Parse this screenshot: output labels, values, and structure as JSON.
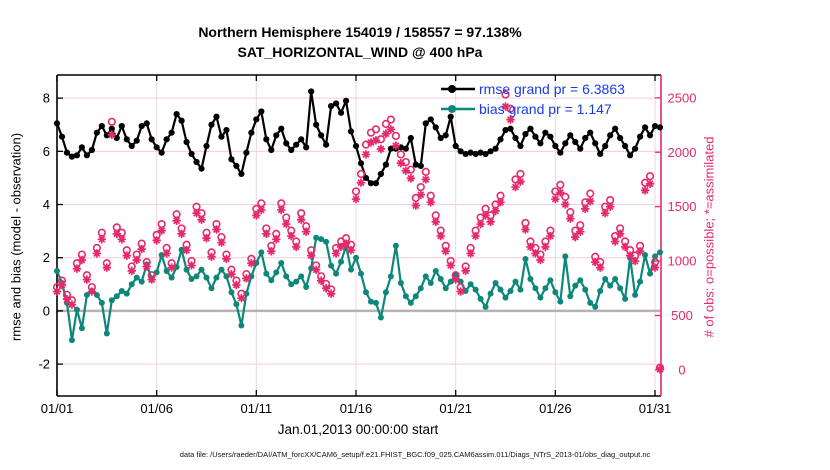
{
  "title": {
    "line1": "Northern Hemisphere 154019 / 158557 = 97.138%",
    "line2": "SAT_HORIZONTAL_WIND @ 400 hPa"
  },
  "legend": {
    "items": [
      {
        "label": "rmse grand pr = 6.3863",
        "color": "#000000"
      },
      {
        "label": "bias grand pr = 1.147",
        "color": "#0e877b"
      }
    ]
  },
  "axes": {
    "left_label": "rmse and bias (model - observation)",
    "right_label": "# of obs: o=possible; *=assimilated",
    "x_label": "Jan.01,2013 00:00:00 start",
    "x_tick_labels": [
      "01/01",
      "01/06",
      "01/11",
      "01/16",
      "01/21",
      "01/26",
      "01/31"
    ],
    "x_tick_days": [
      0,
      5,
      10,
      15,
      20,
      25,
      30
    ],
    "left_ticks": [
      -2,
      0,
      2,
      4,
      6,
      8
    ],
    "right_ticks": [
      0,
      500,
      1000,
      1500,
      2000,
      2500
    ]
  },
  "footer": "data file: /Users/raeder/DAI/ATM_forcXX/CAM6_setup/f.e21.FHIST_BGC.f09_025.CAM6assim.011/Diags_NTrS_2013-01/obs_diag_output.nc",
  "colors": {
    "rmse": "#000000",
    "bias": "#0e877b",
    "obs_pink": "#e6296b",
    "legend_text": "#1b3be8",
    "zero_line": "#b9b2b4",
    "grid_pink": "#f6ccd8",
    "grid_vert": "#eed6dc",
    "axis_black": "#000000"
  },
  "chart_data": {
    "type": "line",
    "x_start_day": 0,
    "x_step_days": 0.25,
    "xlim": [
      0,
      30.3
    ],
    "ylim_left": [
      -3.2,
      8.87
    ],
    "ylim_right": [
      -240,
      2710
    ],
    "grid": true,
    "legend_position": "top-right-inside",
    "series": [
      {
        "name": "rmse",
        "axis": "left",
        "marker": "filled-circle",
        "values": [
          7.05,
          6.55,
          5.95,
          5.8,
          5.85,
          6.15,
          5.85,
          6.05,
          6.7,
          6.95,
          6.6,
          6.85,
          6.5,
          6.95,
          6.45,
          6.2,
          6.4,
          6.95,
          7.05,
          6.45,
          6.15,
          5.95,
          6.45,
          6.7,
          7.4,
          7.15,
          6.35,
          5.9,
          5.6,
          5.35,
          6.2,
          7.0,
          7.3,
          6.55,
          6.8,
          5.7,
          5.45,
          5.15,
          5.95,
          6.7,
          7.2,
          7.5,
          6.45,
          6.05,
          6.6,
          6.85,
          6.3,
          6.05,
          6.25,
          6.45,
          6.15,
          8.25,
          7.0,
          6.6,
          6.25,
          7.7,
          7.8,
          7.45,
          7.9,
          6.75,
          6.2,
          5.55,
          5.0,
          4.8,
          4.8,
          5.15,
          5.5,
          6.1,
          6.1,
          6.15,
          6.1,
          6.5,
          5.5,
          5.45,
          7.05,
          7.2,
          6.9,
          6.5,
          6.6,
          7.3,
          6.2,
          6.0,
          5.9,
          5.95,
          5.9,
          5.95,
          5.9,
          6.0,
          6.1,
          6.45,
          6.8,
          6.85,
          6.5,
          6.2,
          6.65,
          6.85,
          6.55,
          6.3,
          6.7,
          6.55,
          6.2,
          5.95,
          6.3,
          6.6,
          6.35,
          6.1,
          6.5,
          6.7,
          6.3,
          5.9,
          6.2,
          6.6,
          6.85,
          6.5,
          6.2,
          5.85,
          6.1,
          6.55,
          6.9,
          6.6,
          6.95,
          6.9
        ]
      },
      {
        "name": "bias",
        "axis": "left",
        "marker": "filled-circle",
        "values": [
          1.5,
          1.05,
          0.3,
          -1.1,
          0.05,
          -0.65,
          0.6,
          0.75,
          0.6,
          0.3,
          -0.85,
          0.4,
          0.55,
          0.75,
          0.65,
          1.0,
          1.25,
          1.1,
          1.75,
          1.2,
          1.45,
          2.1,
          1.5,
          1.25,
          1.65,
          2.3,
          1.55,
          1.2,
          1.3,
          1.55,
          1.25,
          0.85,
          1.25,
          1.55,
          1.3,
          0.7,
          0.25,
          -0.55,
          0.65,
          1.3,
          1.8,
          2.2,
          1.4,
          1.15,
          1.45,
          1.8,
          1.3,
          1.0,
          1.1,
          1.3,
          0.9,
          1.6,
          2.75,
          2.7,
          2.6,
          1.7,
          1.4,
          1.85,
          2.45,
          1.55,
          2.0,
          1.4,
          0.7,
          0.35,
          0.3,
          -0.25,
          0.7,
          1.3,
          2.45,
          1.05,
          0.55,
          0.3,
          0.55,
          0.85,
          1.3,
          1.05,
          1.5,
          1.2,
          0.85,
          1.1,
          1.35,
          1.1,
          0.75,
          1.0,
          0.8,
          0.45,
          0.15,
          0.65,
          1.05,
          0.8,
          0.5,
          0.75,
          1.1,
          0.8,
          1.95,
          1.2,
          0.85,
          0.5,
          0.85,
          1.15,
          0.7,
          0.35,
          2.05,
          0.55,
          0.95,
          1.15,
          0.8,
          0.3,
          0.15,
          0.75,
          1.2,
          0.95,
          1.2,
          0.85,
          0.45,
          2.0,
          0.6,
          1.1,
          2.1,
          1.4,
          2.05,
          2.2
        ]
      },
      {
        "name": "obs_possible",
        "axis": "right",
        "marker": "open-circle",
        "values": [
          760,
          820,
          690,
          640,
          980,
          1060,
          870,
          760,
          1120,
          1260,
          980,
          2280,
          1310,
          1260,
          1100,
          950,
          1060,
          1160,
          990,
          870,
          1240,
          1340,
          1120,
          980,
          1430,
          1300,
          1150,
          1000,
          1500,
          1440,
          1260,
          1080,
          1340,
          1220,
          1060,
          920,
          820,
          700,
          880,
          1020,
          1480,
          1530,
          1300,
          1140,
          1250,
          1530,
          1400,
          1280,
          1180,
          1440,
          1320,
          1100,
          960,
          860,
          790,
          740,
          1120,
          1180,
          1210,
          1150,
          1640,
          1800,
          2070,
          2180,
          2210,
          2120,
          2260,
          2300,
          2150,
          1980,
          1910,
          1840,
          1580,
          1680,
          1820,
          1600,
          1420,
          1280,
          1140,
          1000,
          870,
          760,
          950,
          1120,
          1280,
          1400,
          1480,
          1420,
          1520,
          1600,
          2530,
          2400,
          1750,
          1800,
          1350,
          1180,
          1120,
          1060,
          1180,
          1280,
          1640,
          1700,
          1590,
          1450,
          1280,
          1330,
          1540,
          1620,
          1040,
          990,
          1500,
          1560,
          1230,
          1300,
          1180,
          1100,
          1050,
          1140,
          1720,
          1780,
          990,
          20
        ]
      },
      {
        "name": "obs_assimilated",
        "axis": "right",
        "marker": "asterisk",
        "values": [
          720,
          780,
          650,
          600,
          930,
          1010,
          830,
          720,
          1070,
          1200,
          940,
          2160,
          1250,
          1200,
          1050,
          910,
          1010,
          1110,
          950,
          830,
          1190,
          1280,
          1070,
          940,
          1370,
          1250,
          1100,
          960,
          1440,
          1380,
          1210,
          1040,
          1290,
          1170,
          1020,
          880,
          780,
          660,
          840,
          980,
          1420,
          1470,
          1250,
          1090,
          1200,
          1470,
          1340,
          1230,
          1130,
          1380,
          1270,
          1050,
          920,
          820,
          750,
          700,
          1070,
          1130,
          1160,
          1100,
          1570,
          1720,
          1980,
          2090,
          2110,
          2030,
          2170,
          2210,
          2060,
          1900,
          1830,
          1760,
          1510,
          1610,
          1750,
          1540,
          1360,
          1230,
          1090,
          960,
          830,
          720,
          910,
          1070,
          1230,
          1340,
          1420,
          1360,
          1460,
          1540,
          2420,
          2300,
          1680,
          1730,
          1290,
          1130,
          1070,
          1010,
          1130,
          1230,
          1570,
          1630,
          1520,
          1390,
          1220,
          1270,
          1480,
          1550,
          990,
          940,
          1440,
          1500,
          1180,
          1250,
          1130,
          1050,
          1000,
          1090,
          1650,
          1710,
          940,
          5
        ]
      }
    ]
  }
}
